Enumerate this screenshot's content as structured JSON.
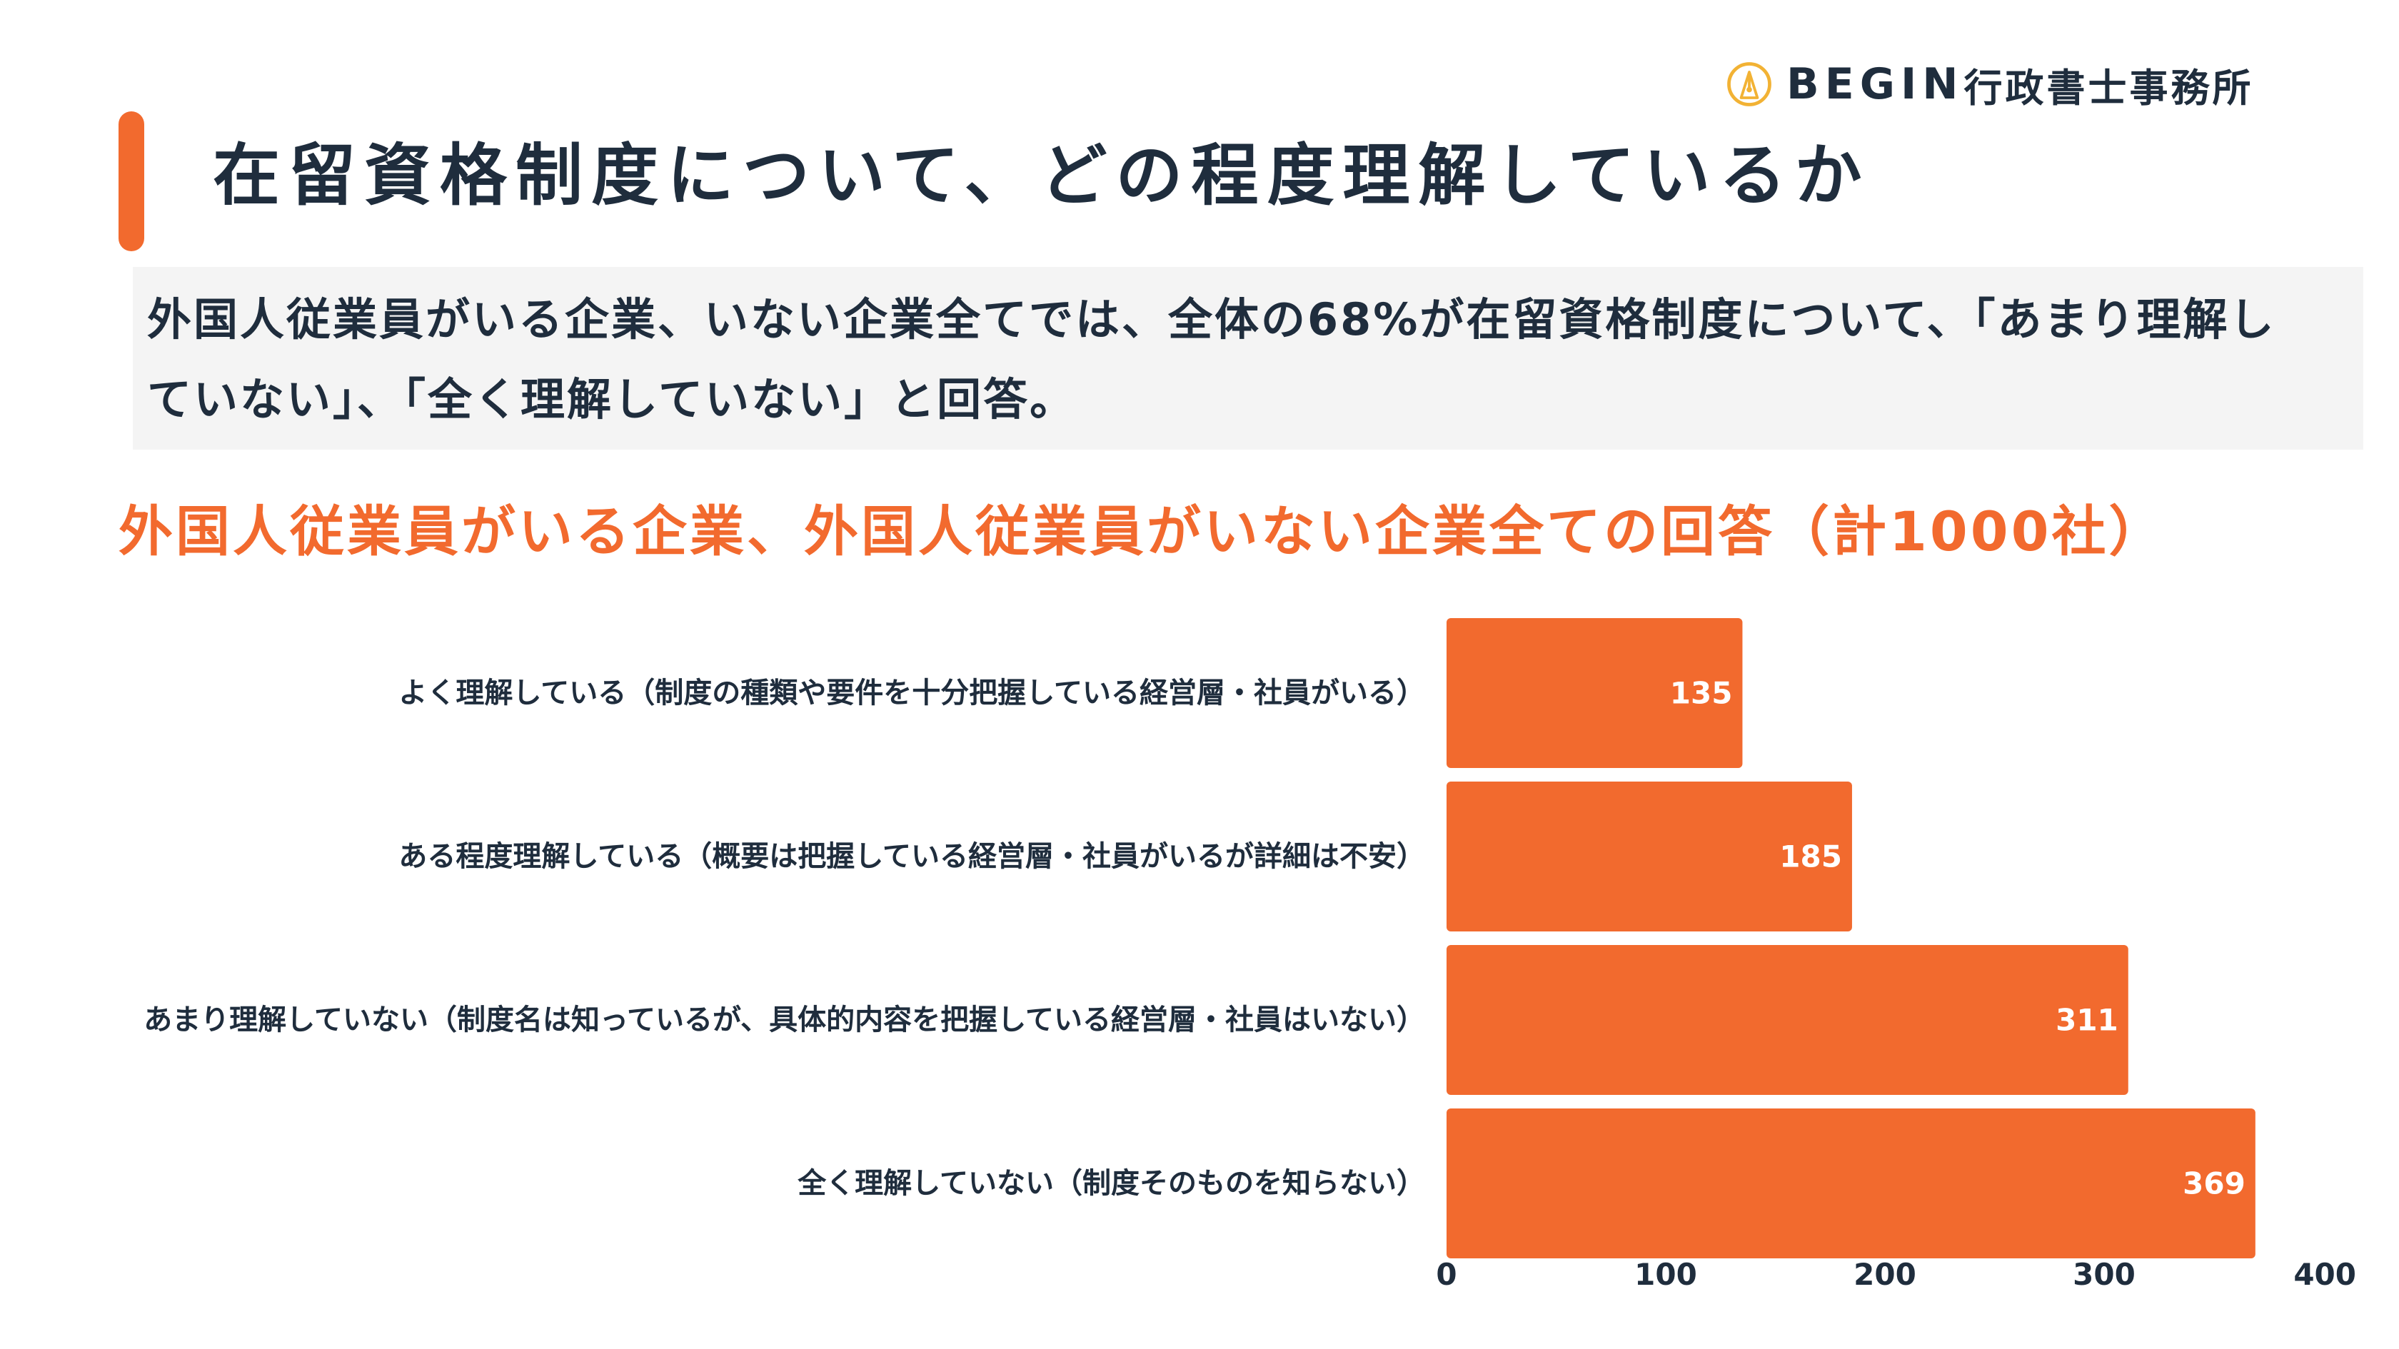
{
  "logo": {
    "brand": "BEGIN",
    "suffix": "行政書士事務所",
    "icon": "pen-nib-icon"
  },
  "page_title": "在留資格制度について、どの程度理解しているか",
  "summary": "外国人従業員がいる企業、いない企業全てでは、全体の68%が在留資格制度について、「あまり理解していない」、「全く理解していない」と回答。",
  "colors": {
    "accent": "#f26a2e",
    "text": "#1f2d3d",
    "summary_bg": "#f4f4f4"
  },
  "chart_data": {
    "type": "bar",
    "orientation": "horizontal",
    "title": "外国人従業員がいる企業、外国人従業員がいない企業全ての回答（計1000社）",
    "categories": [
      "よく理解している（制度の種類や要件を十分把握している経営層・社員がいる）",
      "ある程度理解している（概要は把握している経営層・社員がいるが詳細は不安）",
      "あまり理解していない（制度名は知っているが、具体的内容を把握している経営層・社員はいない）",
      "全く理解していない（制度そのものを知らない）"
    ],
    "values": [
      135,
      185,
      311,
      369
    ],
    "xlim": [
      0,
      400
    ],
    "ticks": [
      0,
      100,
      200,
      300,
      400
    ],
    "bar_color": "#f26a2e",
    "data_labels": true,
    "grid": false,
    "legend": false
  }
}
